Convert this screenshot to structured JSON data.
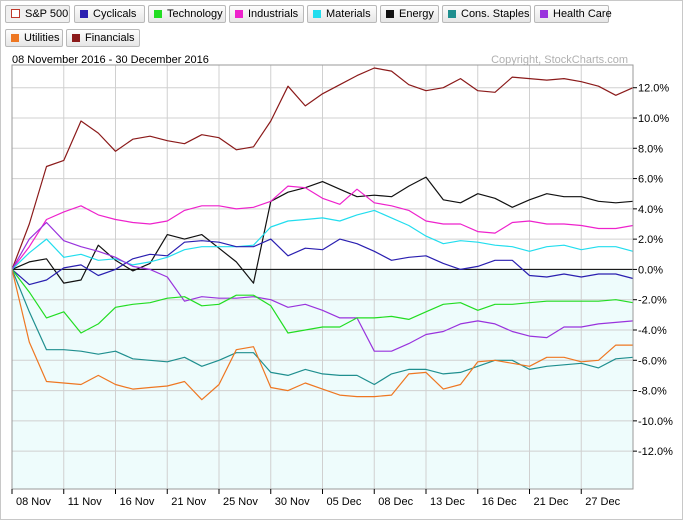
{
  "legend": [
    {
      "label": "S&P 500",
      "color": "#c0392b",
      "hollow": true,
      "active": true
    },
    {
      "label": "Cyclicals",
      "color": "#2a1fb0"
    },
    {
      "label": "Technology",
      "color": "#22dd22"
    },
    {
      "label": "Industrials",
      "color": "#ee22cc"
    },
    {
      "label": "Materials",
      "color": "#22ddee"
    },
    {
      "label": "Energy",
      "color": "#111111"
    },
    {
      "label": "Cons. Staples",
      "color": "#1f8f8f"
    },
    {
      "label": "Health Care",
      "color": "#9933dd"
    },
    {
      "label": "Utilities",
      "color": "#ee7722"
    },
    {
      "label": "Financials",
      "color": "#8b1a1a"
    }
  ],
  "header": {
    "date_range": "08 November 2016 - 30 December 2016",
    "copyright": "Copyright, StockCharts.com"
  },
  "chart_data": {
    "type": "line",
    "ylim": [
      -14.5,
      13.5
    ],
    "y_ticks": [
      12,
      10,
      8,
      6,
      4,
      2,
      0,
      -2,
      -4,
      -6,
      -8,
      -10,
      -12
    ],
    "y_tick_labels": [
      "12.0%",
      "10.0%",
      "8.0%",
      "6.0%",
      "4.0%",
      "2.0%",
      "0.0%",
      "-2.0%",
      "-4.0%",
      "-6.0%",
      "-8.0%",
      "-10.0%",
      "-12.0%"
    ],
    "x_ticks": [
      0,
      3,
      6,
      9,
      12,
      15,
      18,
      21,
      24,
      27,
      30,
      33
    ],
    "x_tick_labels": [
      "08 Nov",
      "11 Nov",
      "16 Nov",
      "21 Nov",
      "25 Nov",
      "30 Nov",
      "05 Dec",
      "08 Dec",
      "13 Dec",
      "16 Dec",
      "21 Dec",
      "27 Dec"
    ],
    "n_points": 37,
    "series": [
      {
        "name": "Financials",
        "color": "#8b1a1a",
        "values": [
          0,
          3.0,
          6.8,
          7.2,
          9.8,
          9.0,
          7.8,
          8.6,
          8.8,
          8.5,
          8.3,
          8.9,
          8.7,
          7.9,
          8.1,
          9.8,
          12.1,
          10.8,
          11.6,
          12.2,
          12.8,
          13.3,
          13.1,
          12.2,
          11.8,
          12.0,
          12.6,
          11.8,
          11.7,
          12.7,
          12.6,
          12.5,
          12.6,
          12.4,
          12.1,
          11.5,
          12.0
        ]
      },
      {
        "name": "Energy",
        "color": "#111111",
        "values": [
          0,
          0.5,
          0.7,
          -0.9,
          -0.7,
          1.6,
          0.6,
          -0.1,
          0.4,
          2.3,
          2.0,
          2.3,
          1.4,
          0.5,
          -0.9,
          4.5,
          5.1,
          5.4,
          5.8,
          5.3,
          4.8,
          4.9,
          4.8,
          5.5,
          6.1,
          4.6,
          4.4,
          5.0,
          4.7,
          4.1,
          4.6,
          5.0,
          4.8,
          4.8,
          4.5,
          4.4,
          4.5
        ]
      },
      {
        "name": "Industrials",
        "color": "#ee22cc",
        "values": [
          0,
          1.5,
          3.3,
          3.8,
          4.2,
          3.6,
          3.3,
          3.1,
          3.0,
          3.2,
          3.9,
          4.2,
          4.2,
          4.0,
          4.1,
          4.5,
          5.5,
          5.4,
          4.7,
          4.3,
          5.3,
          4.4,
          4.2,
          3.9,
          3.2,
          3.0,
          3.0,
          2.5,
          2.4,
          3.1,
          3.2,
          3.0,
          3.0,
          2.9,
          2.7,
          2.7,
          2.9
        ]
      },
      {
        "name": "Materials",
        "color": "#22ddee",
        "values": [
          0,
          1.1,
          2.0,
          0.8,
          1.0,
          0.6,
          0.7,
          0.3,
          0.5,
          0.8,
          1.3,
          1.5,
          1.5,
          1.5,
          1.6,
          2.8,
          3.2,
          3.3,
          3.4,
          3.2,
          3.6,
          3.9,
          3.4,
          2.9,
          2.2,
          1.7,
          1.9,
          1.8,
          1.6,
          1.5,
          1.2,
          1.5,
          1.6,
          1.3,
          1.5,
          1.5,
          1.2
        ]
      },
      {
        "name": "Cyclicals",
        "color": "#2a1fb0",
        "values": [
          0,
          -1.0,
          -0.7,
          0.1,
          0.3,
          -0.4,
          0.0,
          0.7,
          1.0,
          0.9,
          1.8,
          1.9,
          1.8,
          1.5,
          1.5,
          2.0,
          0.9,
          1.4,
          1.3,
          2.0,
          1.7,
          1.2,
          0.6,
          0.8,
          0.9,
          0.4,
          0.0,
          0.2,
          0.6,
          0.6,
          -0.4,
          -0.5,
          -0.3,
          -0.5,
          -0.3,
          -0.3,
          -0.6
        ]
      },
      {
        "name": "Health Care",
        "color": "#9933dd",
        "values": [
          0,
          2.0,
          3.1,
          1.9,
          1.5,
          1.2,
          0.8,
          0.2,
          0.0,
          -0.5,
          -2.1,
          -1.8,
          -1.9,
          -1.9,
          -1.8,
          -2.0,
          -2.5,
          -2.3,
          -2.7,
          -3.2,
          -3.2,
          -5.4,
          -5.4,
          -4.9,
          -4.3,
          -4.1,
          -3.6,
          -3.4,
          -3.6,
          -4.1,
          -4.4,
          -4.5,
          -3.8,
          -3.8,
          -3.6,
          -3.5,
          -3.4
        ]
      },
      {
        "name": "Technology",
        "color": "#22dd22",
        "values": [
          0,
          -1.5,
          -3.2,
          -2.8,
          -4.2,
          -3.6,
          -2.5,
          -2.3,
          -2.2,
          -1.9,
          -1.8,
          -2.4,
          -2.3,
          -1.7,
          -1.7,
          -2.4,
          -4.2,
          -4.0,
          -3.8,
          -3.8,
          -3.2,
          -3.2,
          -3.1,
          -3.3,
          -2.8,
          -2.3,
          -2.2,
          -2.7,
          -2.3,
          -2.3,
          -2.2,
          -2.1,
          -2.1,
          -2.1,
          -2.1,
          -2.0,
          -2.2
        ]
      },
      {
        "name": "Cons. Staples",
        "color": "#1f8f8f",
        "values": [
          0,
          -2.8,
          -5.3,
          -5.3,
          -5.4,
          -5.6,
          -5.4,
          -5.9,
          -6.0,
          -6.1,
          -5.8,
          -6.4,
          -6.0,
          -5.5,
          -5.5,
          -6.8,
          -7.0,
          -6.6,
          -6.9,
          -7.0,
          -7.0,
          -7.6,
          -6.9,
          -6.6,
          -6.6,
          -6.9,
          -6.8,
          -6.4,
          -6.0,
          -6.0,
          -6.6,
          -6.4,
          -6.3,
          -6.2,
          -6.5,
          -5.9,
          -5.8
        ]
      },
      {
        "name": "Utilities",
        "color": "#ee7722",
        "values": [
          0,
          -4.8,
          -7.4,
          -7.5,
          -7.6,
          -7.0,
          -7.6,
          -7.9,
          -7.8,
          -7.7,
          -7.4,
          -8.6,
          -7.6,
          -5.3,
          -5.1,
          -7.8,
          -8.0,
          -7.5,
          -7.9,
          -8.3,
          -8.4,
          -8.4,
          -8.3,
          -6.9,
          -6.8,
          -7.9,
          -7.6,
          -6.1,
          -6.0,
          -6.2,
          -6.4,
          -5.8,
          -5.8,
          -6.1,
          -6.0,
          -5.0,
          -5.0
        ]
      }
    ]
  }
}
